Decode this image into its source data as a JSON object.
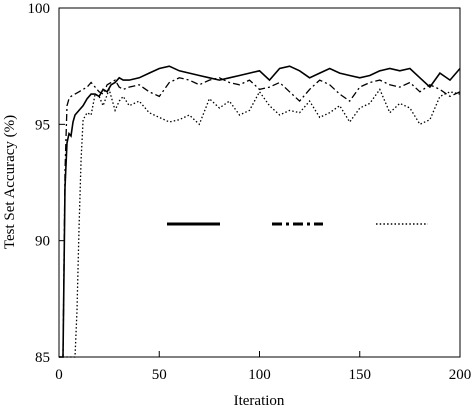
{
  "chart_data": {
    "type": "line",
    "title": "",
    "xlabel": "Iteration",
    "ylabel": "Test Set Accuracy (%)",
    "xlim": [
      0,
      200
    ],
    "ylim": [
      85,
      100
    ],
    "xticks": [
      0,
      50,
      100,
      150,
      200
    ],
    "yticks": [
      85,
      90,
      95,
      100
    ],
    "grid": false,
    "legend": "center-right, line samples only, no labels",
    "series": [
      {
        "style": "solid",
        "x": [
          0,
          2,
          3,
          4,
          5,
          6,
          7,
          8,
          10,
          12,
          14,
          16,
          18,
          20,
          22,
          24,
          26,
          28,
          30,
          32,
          35,
          40,
          45,
          50,
          55,
          60,
          65,
          70,
          75,
          80,
          85,
          90,
          95,
          100,
          105,
          110,
          115,
          120,
          125,
          130,
          135,
          140,
          145,
          150,
          155,
          160,
          165,
          170,
          175,
          180,
          185,
          190,
          195,
          200
        ],
        "y": [
          85,
          85,
          92.3,
          94.2,
          94.6,
          94.5,
          95.1,
          95.4,
          95.6,
          95.8,
          96.1,
          96.3,
          96.3,
          96.2,
          96.5,
          96.4,
          96.7,
          96.8,
          97.0,
          96.9,
          96.9,
          97.0,
          97.2,
          97.4,
          97.5,
          97.3,
          97.2,
          97.1,
          97.0,
          96.9,
          97.0,
          97.1,
          97.2,
          97.3,
          96.9,
          97.4,
          97.5,
          97.3,
          97.0,
          97.2,
          97.4,
          97.2,
          97.1,
          97.0,
          97.1,
          97.3,
          97.4,
          97.3,
          97.4,
          97.0,
          96.6,
          97.2,
          96.9,
          97.4
        ]
      },
      {
        "style": "dash-dot",
        "x": [
          0,
          2,
          3,
          4,
          5,
          6,
          8,
          10,
          12,
          14,
          16,
          18,
          20,
          22,
          24,
          26,
          28,
          30,
          32,
          35,
          40,
          45,
          50,
          55,
          60,
          65,
          70,
          75,
          80,
          85,
          90,
          95,
          100,
          105,
          110,
          115,
          120,
          125,
          130,
          135,
          140,
          145,
          150,
          155,
          160,
          165,
          170,
          175,
          180,
          185,
          190,
          195,
          200
        ],
        "y": [
          85,
          85,
          93.0,
          95.8,
          96.1,
          96.2,
          96.3,
          96.4,
          96.5,
          96.6,
          96.8,
          96.6,
          96.4,
          96.3,
          96.7,
          96.8,
          96.9,
          96.6,
          96.5,
          96.6,
          96.7,
          96.4,
          96.2,
          96.8,
          97.0,
          96.9,
          96.7,
          96.9,
          97.0,
          96.8,
          96.7,
          96.9,
          96.5,
          96.6,
          96.8,
          96.4,
          96.0,
          96.5,
          96.9,
          96.7,
          96.3,
          96.0,
          96.6,
          96.8,
          96.9,
          96.7,
          96.6,
          96.8,
          96.4,
          96.7,
          96.5,
          96.2,
          96.4
        ]
      },
      {
        "style": "dotted",
        "x": [
          0,
          8,
          9,
          10,
          11,
          12,
          14,
          16,
          18,
          20,
          22,
          25,
          28,
          30,
          32,
          35,
          40,
          45,
          50,
          55,
          60,
          65,
          70,
          75,
          80,
          85,
          90,
          95,
          100,
          105,
          110,
          115,
          120,
          125,
          130,
          135,
          140,
          145,
          150,
          155,
          160,
          165,
          170,
          175,
          180,
          185,
          190,
          195,
          200
        ],
        "y": [
          85,
          85,
          87.0,
          90.5,
          93.5,
          95.2,
          95.5,
          95.4,
          96.3,
          96.2,
          95.8,
          96.5,
          95.6,
          96.0,
          96.2,
          95.8,
          96.0,
          95.5,
          95.3,
          95.1,
          95.2,
          95.4,
          95.0,
          96.1,
          95.7,
          96.0,
          95.4,
          95.6,
          96.4,
          95.8,
          95.4,
          95.6,
          95.5,
          96.0,
          95.3,
          95.5,
          95.8,
          95.1,
          95.7,
          95.9,
          96.5,
          95.5,
          95.9,
          95.7,
          95.0,
          95.2,
          96.2,
          96.4,
          96.3
        ]
      }
    ]
  }
}
